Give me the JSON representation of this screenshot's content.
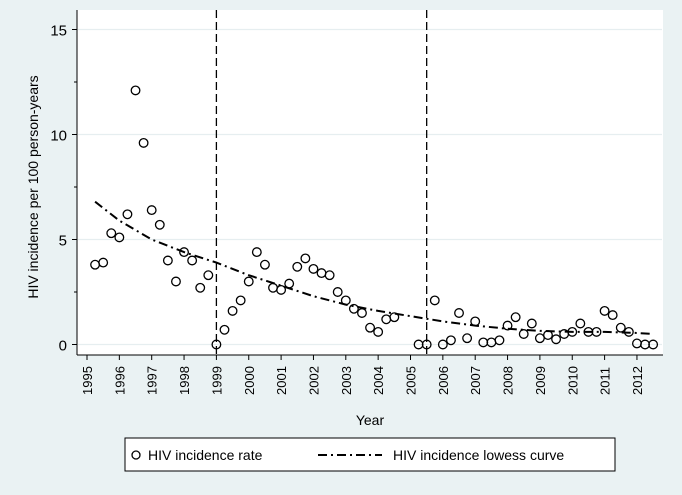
{
  "chart_data": {
    "type": "scatter",
    "title": "",
    "xlabel": "Year",
    "ylabel": "HIV incidence per 100 person-years",
    "xlim": [
      1995,
      2012.5
    ],
    "ylim": [
      0,
      15
    ],
    "x_ticks": [
      "1995",
      "1996",
      "1997",
      "1998",
      "1999",
      "2000",
      "2001",
      "2002",
      "2003",
      "2004",
      "2005",
      "2006",
      "2007",
      "2008",
      "2009",
      "2010",
      "2011",
      "2012"
    ],
    "y_ticks": [
      "0",
      "5",
      "10",
      "15"
    ],
    "grid": true,
    "reference_lines_x": [
      1999,
      2005.5
    ],
    "legend": {
      "placement": "bottom",
      "entries": [
        "HIV incidence rate",
        "HIV incidence lowess curve"
      ]
    },
    "series": [
      {
        "name": "HIV incidence rate",
        "kind": "scatter",
        "x": [
          1995.25,
          1995.5,
          1995.75,
          1996,
          1996.25,
          1996.5,
          1996.75,
          1997,
          1997.25,
          1997.5,
          1997.75,
          1998,
          1998.25,
          1998.5,
          1998.75,
          1999,
          1999.25,
          1999.5,
          1999.75,
          2000,
          2000.25,
          2000.5,
          2000.75,
          2001,
          2001.25,
          2001.5,
          2001.75,
          2002,
          2002.25,
          2002.5,
          2002.75,
          2003,
          2003.25,
          2003.5,
          2003.75,
          2004,
          2004.25,
          2004.5,
          2005.25,
          2005.5,
          2005.75,
          2006,
          2006.25,
          2006.5,
          2006.75,
          2007,
          2007.25,
          2007.5,
          2007.75,
          2008,
          2008.25,
          2008.5,
          2008.75,
          2009,
          2009.25,
          2009.5,
          2009.75,
          2010,
          2010.25,
          2010.5,
          2010.75,
          2011,
          2011.25,
          2011.5,
          2011.75,
          2012,
          2012.25,
          2012.5
        ],
        "y": [
          3.8,
          3.9,
          5.3,
          5.1,
          6.2,
          12.1,
          9.6,
          6.4,
          5.7,
          4.0,
          3.0,
          4.4,
          4.0,
          2.7,
          3.3,
          0,
          0.7,
          1.6,
          2.1,
          3.0,
          4.4,
          3.8,
          2.7,
          2.6,
          2.9,
          3.7,
          4.1,
          3.6,
          3.4,
          3.3,
          2.5,
          2.1,
          1.7,
          1.5,
          0.8,
          0.6,
          1.2,
          1.3,
          0,
          0,
          2.1,
          0,
          0.2,
          1.5,
          0.3,
          1.1,
          0.1,
          0.1,
          0.2,
          0.9,
          1.3,
          0.5,
          1.0,
          0.3,
          0.45,
          0.25,
          0.5,
          0.6,
          1.0,
          0.6,
          0.6,
          1.6,
          1.4,
          0.8,
          0.6,
          0.05,
          0,
          0
        ]
      },
      {
        "name": "HIV incidence lowess curve",
        "kind": "line",
        "x": [
          1995.25,
          1996,
          1997,
          1998,
          1999,
          2000,
          2001,
          2002,
          2003,
          2004,
          2005,
          2006,
          2007,
          2008,
          2009,
          2010,
          2011,
          2012,
          2012.5
        ],
        "y": [
          6.8,
          5.9,
          5.0,
          4.4,
          3.9,
          3.3,
          2.8,
          2.3,
          1.9,
          1.6,
          1.35,
          1.1,
          0.9,
          0.75,
          0.65,
          0.6,
          0.6,
          0.55,
          0.5
        ]
      }
    ]
  }
}
